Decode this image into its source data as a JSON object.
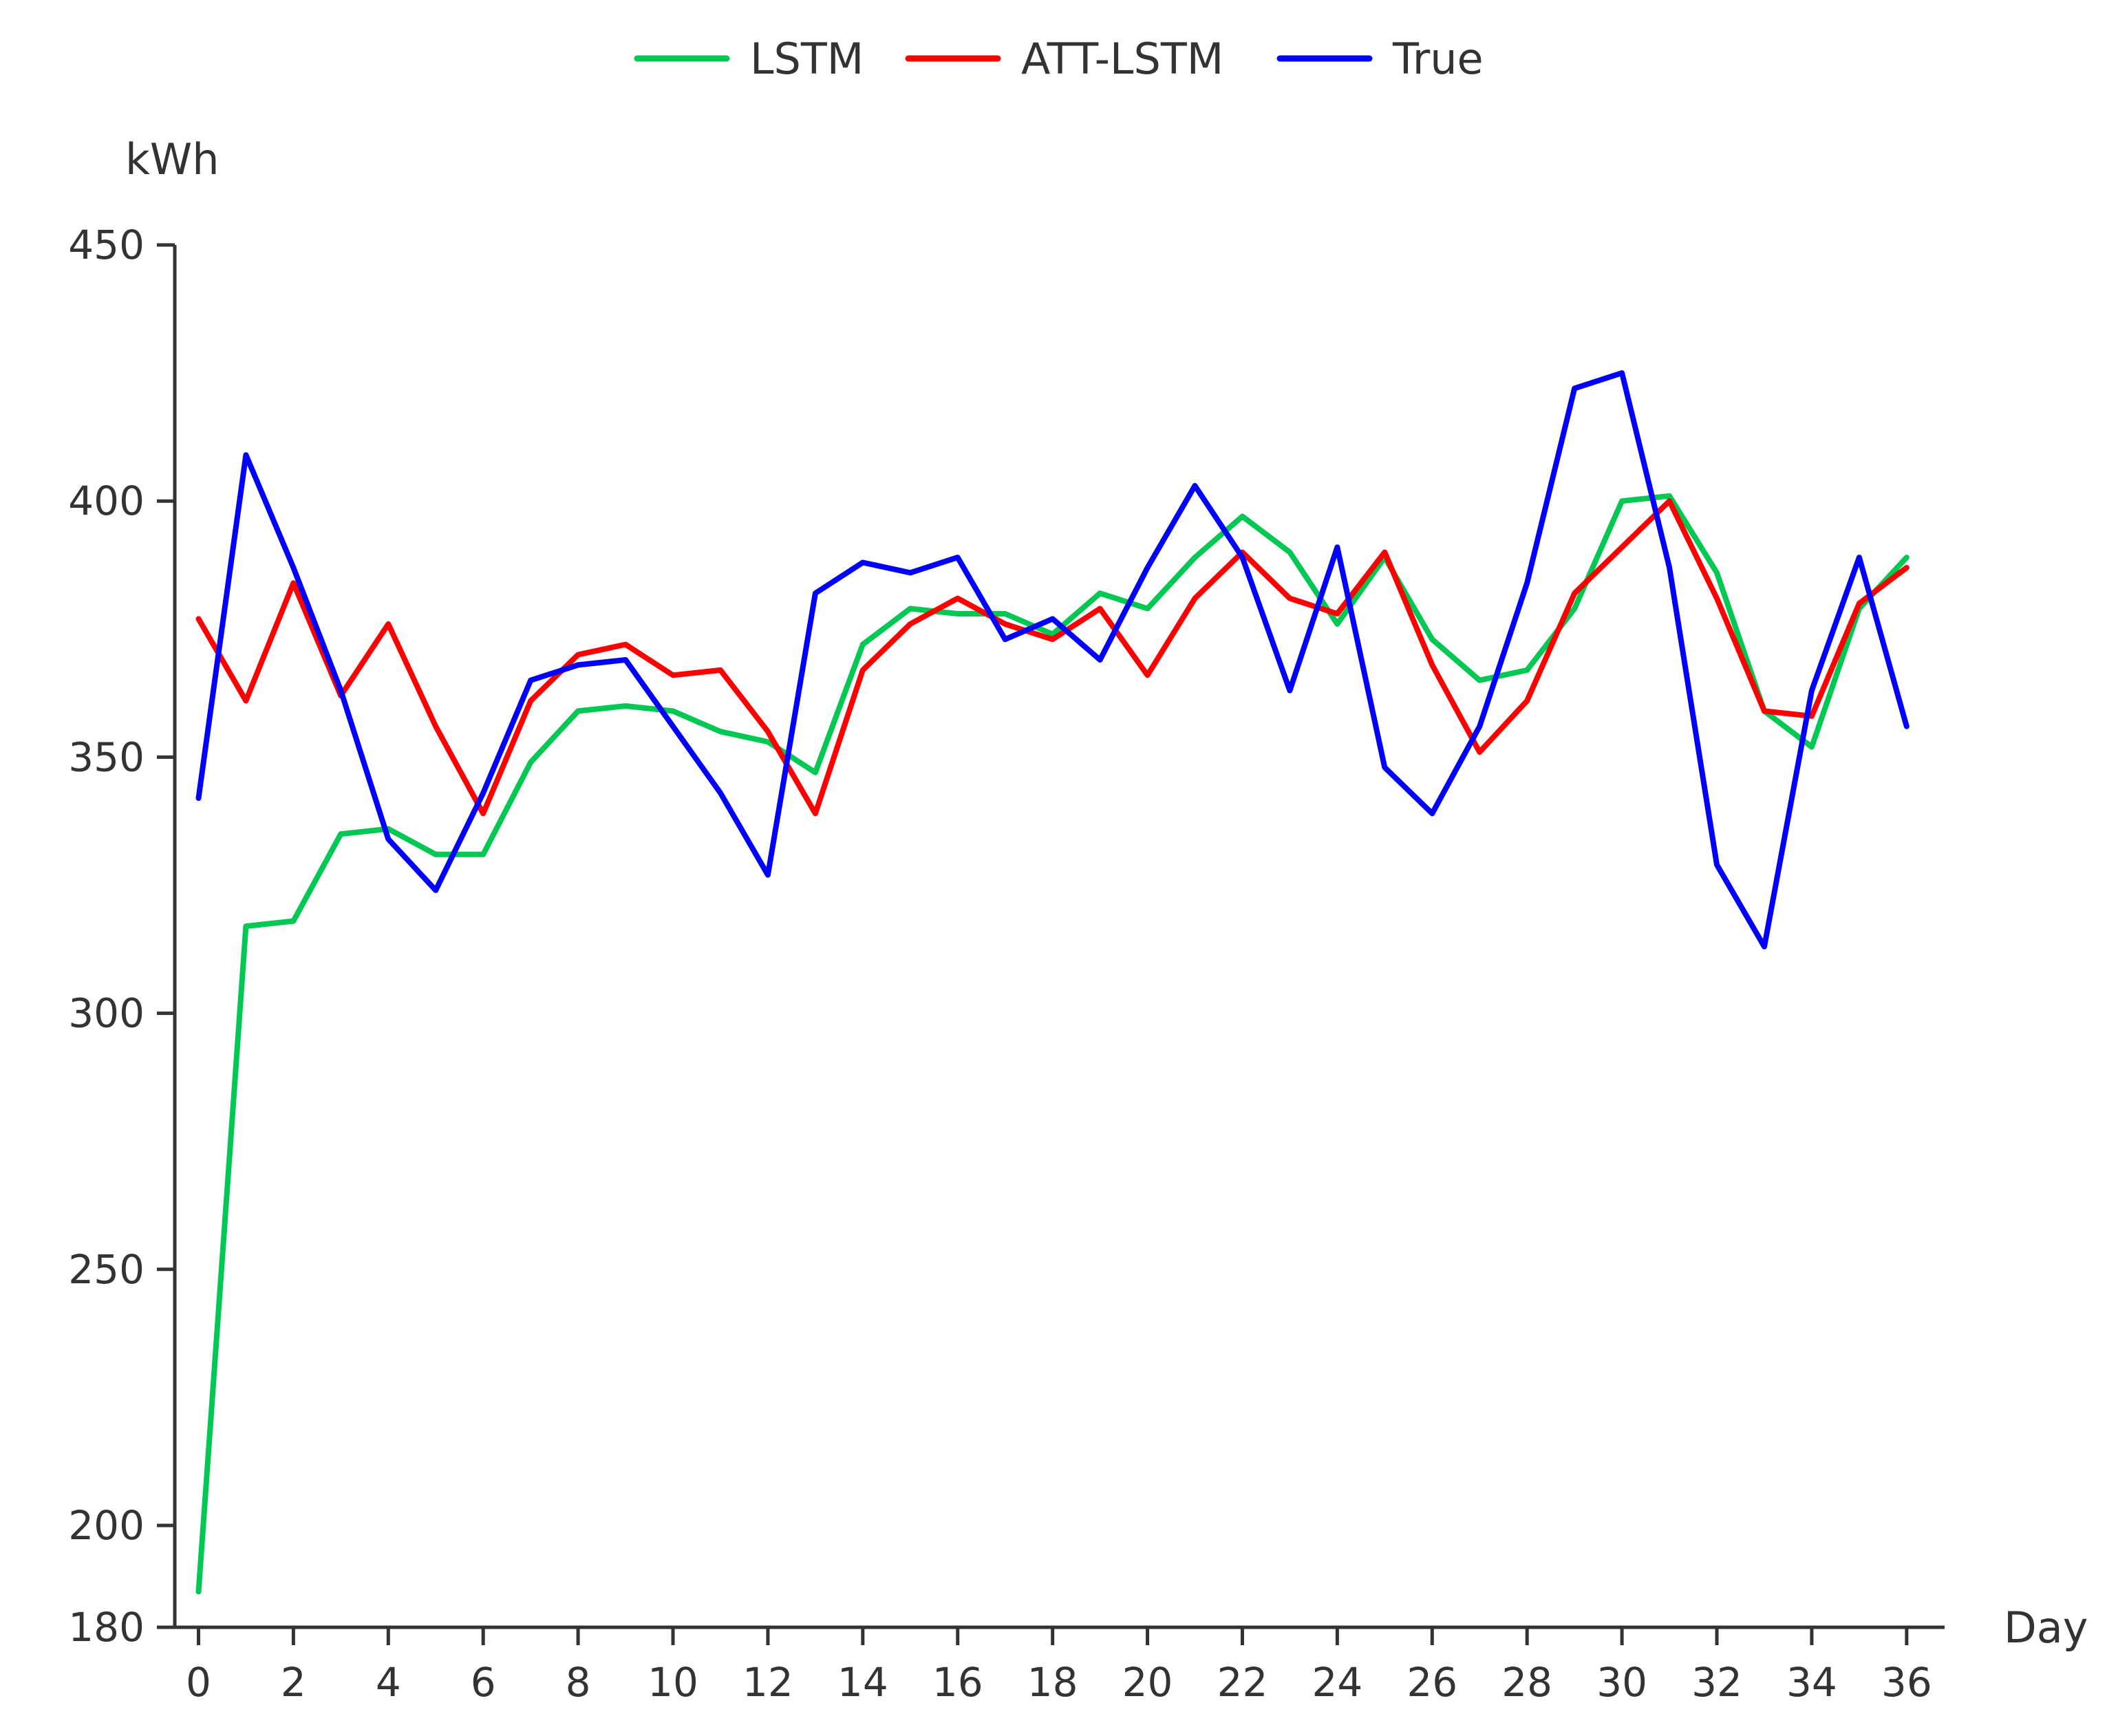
{
  "chart_data": {
    "type": "line",
    "xlabel": "Day",
    "ylabel": "kWh",
    "xlim": [
      -0.5,
      36.8
    ],
    "ylim": [
      180,
      450
    ],
    "x_ticks": [
      0,
      2,
      4,
      6,
      8,
      10,
      12,
      14,
      16,
      18,
      20,
      22,
      24,
      26,
      28,
      30,
      32,
      34,
      36
    ],
    "y_ticks": [
      180,
      200,
      250,
      300,
      350,
      400,
      450
    ],
    "grid": false,
    "legend_position": "top-center",
    "x": [
      0,
      1,
      2,
      3,
      4,
      5,
      6,
      7,
      8,
      9,
      10,
      11,
      12,
      13,
      14,
      15,
      16,
      17,
      18,
      19,
      20,
      21,
      22,
      23,
      24,
      25,
      26,
      27,
      28,
      29,
      30,
      31,
      32,
      33,
      34,
      35,
      36
    ],
    "series": [
      {
        "name": "LSTM",
        "color": "#00c853",
        "values": [
          187,
          317,
          318,
          335,
          336,
          331,
          331,
          349,
          359,
          360,
          359,
          355,
          353,
          347,
          372,
          379,
          378,
          378,
          374,
          382,
          379,
          389,
          397,
          390,
          376,
          389,
          373,
          365,
          367,
          379,
          400,
          401,
          386,
          359,
          352,
          379,
          389
        ]
      },
      {
        "name": "ATT-LSTM",
        "color": "#ff0000",
        "values": [
          377,
          361,
          384,
          362,
          376,
          356,
          339,
          361,
          370,
          372,
          366,
          367,
          355,
          339,
          367,
          376,
          381,
          376,
          373,
          379,
          366,
          381,
          390,
          381,
          378,
          390,
          368,
          351,
          361,
          382,
          391,
          400,
          381,
          359,
          358,
          380,
          387
        ]
      },
      {
        "name": "True",
        "color": "#0000ff",
        "values": [
          342,
          409,
          387,
          363,
          334,
          324,
          343,
          365,
          368,
          369,
          356,
          343,
          327,
          382,
          388,
          386,
          389,
          373,
          377,
          369,
          387,
          403,
          389,
          363,
          391,
          348,
          339,
          356,
          384,
          422,
          425,
          387,
          329,
          313,
          363,
          389,
          356
        ]
      }
    ]
  }
}
